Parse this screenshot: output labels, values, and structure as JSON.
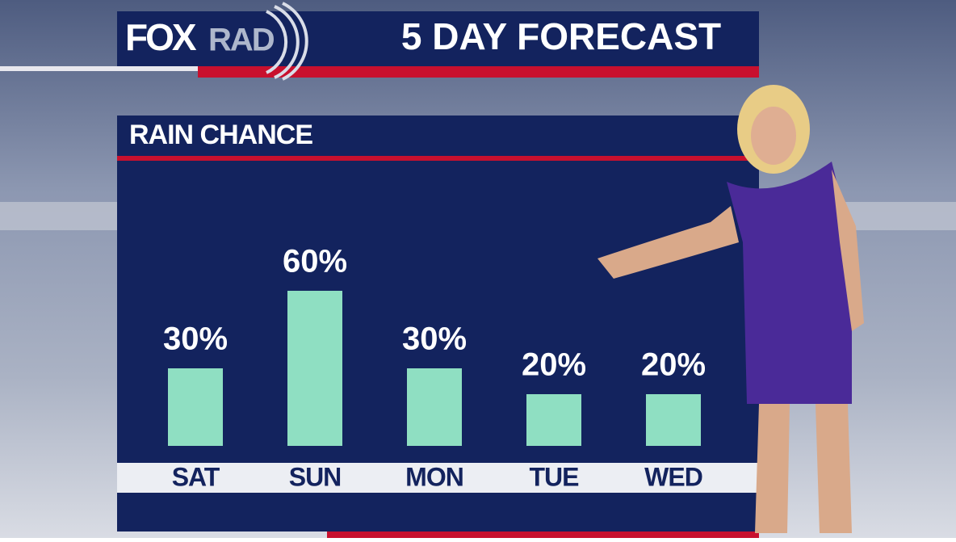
{
  "header": {
    "logo_fox": "FOX",
    "logo_rad": "RAD",
    "title": "5 DAY FORECAST"
  },
  "chart_data": {
    "type": "bar",
    "title": "RAIN CHANCE",
    "categories": [
      "SAT",
      "SUN",
      "MON",
      "TUE",
      "WED"
    ],
    "values": [
      30,
      60,
      30,
      20,
      20
    ],
    "value_labels": [
      "30%",
      "60%",
      "30%",
      "20%",
      "20%"
    ],
    "color": "#8fdfc2"
  }
}
